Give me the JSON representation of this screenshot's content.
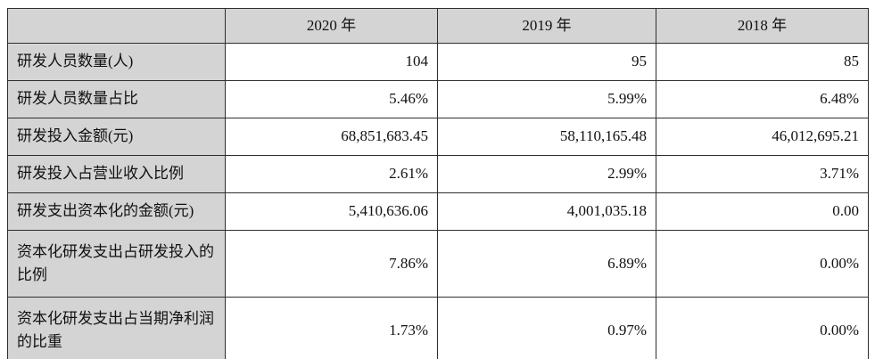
{
  "table": {
    "description": "R&D investment summary table",
    "columns": [
      "",
      "2020 年",
      "2019 年",
      "2018 年"
    ],
    "rows": [
      {
        "label": "研发人员数量(人)",
        "values": [
          "104",
          "95",
          "85"
        ]
      },
      {
        "label": "研发人员数量占比",
        "values": [
          "5.46%",
          "5.99%",
          "6.48%"
        ]
      },
      {
        "label": "研发投入金额(元)",
        "values": [
          "68,851,683.45",
          "58,110,165.48",
          "46,012,695.21"
        ]
      },
      {
        "label": "研发投入占营业收入比例",
        "values": [
          "2.61%",
          "2.99%",
          "3.71%"
        ]
      },
      {
        "label": "研发支出资本化的金额(元)",
        "values": [
          "5,410,636.06",
          "4,001,035.18",
          "0.00"
        ]
      },
      {
        "label": "资本化研发支出占研发投入的比例",
        "values": [
          "7.86%",
          "6.89%",
          "0.00%"
        ]
      },
      {
        "label": "资本化研发支出占当期净利润的比重",
        "values": [
          "1.73%",
          "0.97%",
          "0.00%"
        ]
      }
    ],
    "colors": {
      "header_bg": "#d4d4d4",
      "label_bg": "#d4d4d4",
      "cell_bg": "#ffffff",
      "border": "#2e2e2e",
      "text": "#111111"
    }
  }
}
